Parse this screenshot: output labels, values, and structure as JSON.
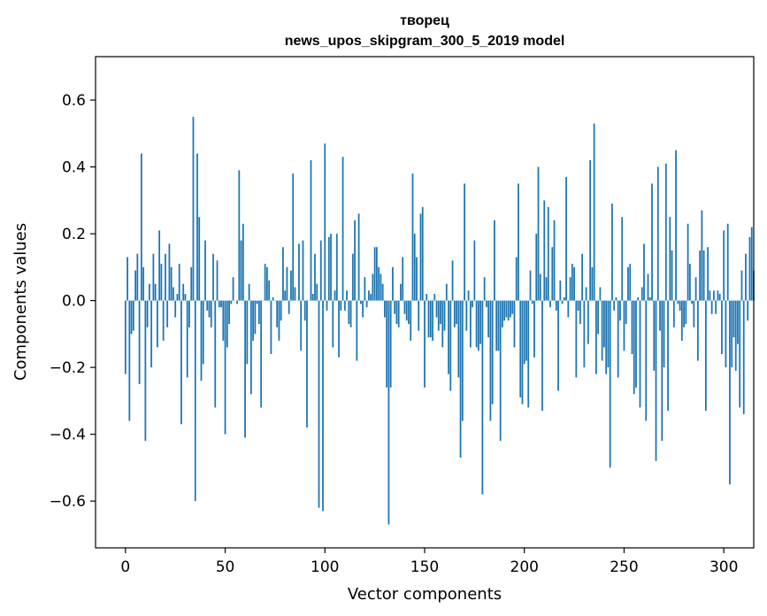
{
  "chart_data": {
    "type": "bar",
    "title": "творец",
    "subtitle": "news_upos_skipgram_300_5_2019 model",
    "xlabel": "Vector components",
    "ylabel": "Components values",
    "xlim": [
      -15,
      315
    ],
    "ylim": [
      -0.74,
      0.73
    ],
    "xticks": [
      0,
      50,
      100,
      150,
      200,
      250,
      300
    ],
    "xtick_labels": [
      "0",
      "50",
      "100",
      "150",
      "200",
      "250",
      "300"
    ],
    "yticks": [
      -0.6,
      -0.4,
      -0.2,
      0.0,
      0.2,
      0.4,
      0.6
    ],
    "ytick_labels": [
      "−0.6",
      "−0.4",
      "−0.2",
      "0.0",
      "0.2",
      "0.4",
      "0.6"
    ],
    "bar_color": "#1f77b4",
    "values": [
      -0.22,
      0.13,
      -0.36,
      -0.1,
      -0.09,
      0.09,
      0.14,
      -0.25,
      0.44,
      0.1,
      -0.42,
      -0.08,
      0.05,
      -0.2,
      0.14,
      0.05,
      -0.14,
      0.21,
      0.11,
      -0.12,
      0.14,
      -0.08,
      0.17,
      0.1,
      0.04,
      -0.05,
      0.02,
      0.11,
      -0.37,
      0.05,
      0.02,
      -0.23,
      -0.08,
      0.1,
      0.55,
      -0.6,
      0.44,
      0.25,
      -0.24,
      -0.19,
      0.18,
      -0.03,
      -0.05,
      -0.08,
      0.14,
      -0.32,
      0.12,
      -0.02,
      -0.02,
      -0.12,
      -0.4,
      -0.14,
      -0.07,
      -0.01,
      0.07,
      0.0,
      -0.01,
      0.39,
      0.18,
      0.23,
      -0.41,
      -0.19,
      0.05,
      -0.28,
      -0.12,
      -0.1,
      -0.01,
      -0.07,
      -0.32,
      0.0,
      0.11,
      0.1,
      0.06,
      -0.16,
      0.01,
      0.0,
      -0.08,
      -0.12,
      -0.06,
      0.16,
      0.03,
      0.1,
      -0.04,
      0.09,
      0.38,
      0.04,
      0.0,
      0.17,
      -0.15,
      0.18,
      -0.06,
      -0.38,
      0.0,
      0.42,
      0.02,
      0.14,
      0.05,
      -0.62,
      0.18,
      -0.63,
      0.47,
      -0.03,
      0.19,
      0.2,
      -0.14,
      0.03,
      0.2,
      -0.17,
      -0.03,
      0.43,
      -0.03,
      0.03,
      -0.07,
      -0.08,
      0.14,
      0.24,
      -0.18,
      0.26,
      -0.01,
      -0.05,
      0.07,
      -0.02,
      0.03,
      0.02,
      0.08,
      0.16,
      0.16,
      0.1,
      0.08,
      0.05,
      -0.05,
      -0.26,
      -0.67,
      -0.26,
      0.1,
      -0.04,
      -0.07,
      -0.08,
      0.05,
      0.13,
      -0.04,
      -0.06,
      -0.07,
      -0.12,
      0.38,
      0.2,
      0.13,
      -0.09,
      0.26,
      0.28,
      -0.26,
      0.02,
      -0.11,
      -0.11,
      -0.12,
      0.02,
      -0.05,
      -0.09,
      -0.07,
      -0.14,
      -0.09,
      0.05,
      -0.22,
      -0.27,
      0.12,
      -0.08,
      -0.07,
      -0.23,
      -0.47,
      -0.36,
      0.35,
      -0.09,
      0.03,
      -0.14,
      -0.02,
      0.18,
      -0.14,
      -0.15,
      -0.13,
      -0.58,
      0.07,
      -0.02,
      -0.11,
      -0.36,
      -0.31,
      0.24,
      -0.15,
      -0.15,
      -0.42,
      -0.08,
      -0.06,
      -0.05,
      -0.06,
      -0.05,
      -0.04,
      -0.14,
      0.13,
      0.35,
      -0.29,
      -0.31,
      -0.19,
      -0.18,
      -0.32,
      0.09,
      -0.01,
      -0.17,
      0.2,
      0.4,
      0.08,
      -0.33,
      0.3,
      0.07,
      0.28,
      -0.02,
      0.16,
      0.24,
      -0.03,
      -0.27,
      0.06,
      -0.01,
      0.01,
      0.37,
      -0.05,
      0.07,
      0.11,
      0.1,
      -0.23,
      -0.03,
      -0.07,
      0.14,
      -0.2,
      0.04,
      -0.13,
      0.42,
      0.1,
      0.53,
      -0.22,
      -0.1,
      0.04,
      -0.18,
      -0.14,
      -0.22,
      -0.2,
      -0.5,
      0.29,
      -0.03,
      0.01,
      -0.23,
      -0.06,
      0.25,
      -0.15,
      -0.07,
      0.1,
      0.11,
      -0.16,
      -0.28,
      -0.26,
      0.01,
      -0.32,
      0.04,
      0.17,
      -0.36,
      0.08,
      0.01,
      0.35,
      -0.21,
      -0.48,
      0.4,
      -0.09,
      -0.42,
      -0.2,
      0.41,
      -0.33,
      0.25,
      0.15,
      -0.08,
      0.45,
      -0.01,
      -0.03,
      -0.12,
      -0.08,
      -0.07,
      0.23,
      0.11,
      -0.01,
      -0.08,
      0.07,
      -0.18,
      0.15,
      0.27,
      0.15,
      -0.33,
      0.16,
      0.03,
      -0.04,
      0.03,
      -0.04,
      0.03,
      0.02,
      -0.16,
      0.21,
      -0.2,
      0.23,
      -0.55,
      -0.2,
      -0.11,
      -0.21,
      -0.13,
      -0.32,
      0.09,
      -0.34,
      0.14,
      -0.06,
      0.19,
      0.22,
      0.09
    ]
  }
}
